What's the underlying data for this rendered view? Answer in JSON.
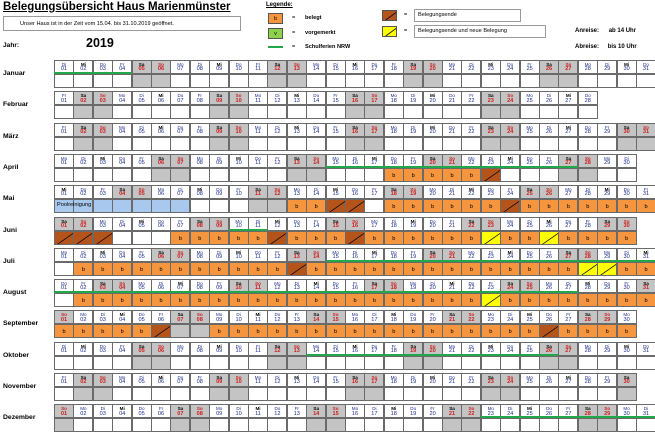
{
  "header": {
    "title": "Belegungsübersicht Haus Marienmünster",
    "notice": "Unser Haus ist in der Zeit vom 15.04. bis 31.10.2019 geöffnet.",
    "jahr_label": "Jahr:",
    "jahr": "2019"
  },
  "legend": {
    "title": "Legende:",
    "eq": "=",
    "items": [
      {
        "key": "b",
        "label": "belegt",
        "color": "#f5953d"
      },
      {
        "key": "v",
        "label": "vorgemerkt",
        "color": "#8ed14a"
      },
      {
        "key": "",
        "label": "Schulferien NRW",
        "color": "#22a84a"
      },
      {
        "key": "",
        "label": "Belegungsende",
        "color": "#b4541b"
      },
      {
        "key": "",
        "label": "Belegungsende und neue Belegung",
        "color": "#ffff00"
      }
    ]
  },
  "times": {
    "anreise_label": "Anreise:",
    "anreise": "ab 14 Uhr",
    "abreise_label": "Abreise:",
    "abreise": "bis 10 Uhr"
  },
  "calendar": {
    "weekday_abbr": [
      "Mo",
      "Di",
      "Mi",
      "Do",
      "Fr",
      "Sa",
      "So"
    ],
    "months": [
      {
        "name": "Januar",
        "start_dow": 1,
        "days": 31
      },
      {
        "name": "Februar",
        "start_dow": 4,
        "days": 28
      },
      {
        "name": "März",
        "start_dow": 4,
        "days": 31
      },
      {
        "name": "April",
        "start_dow": 0,
        "days": 30
      },
      {
        "name": "Mai",
        "start_dow": 2,
        "days": 31
      },
      {
        "name": "Juni",
        "start_dow": 5,
        "days": 30
      },
      {
        "name": "Juli",
        "start_dow": 0,
        "days": 31
      },
      {
        "name": "August",
        "start_dow": 3,
        "days": 31
      },
      {
        "name": "September",
        "start_dow": 6,
        "days": 30
      },
      {
        "name": "Oktober",
        "start_dow": 1,
        "days": 31
      },
      {
        "name": "November",
        "start_dow": 4,
        "days": 30
      },
      {
        "name": "Dezember",
        "start_dow": 6,
        "days": 31
      }
    ],
    "note_freiraum": "Poolreinigung",
    "bookings": {
      "April": {
        "b": [
          18,
          19,
          20,
          21,
          22
        ],
        "be": [
          23
        ]
      },
      "Mai": {
        "fr": [
          1,
          2,
          3,
          4,
          5,
          6,
          7
        ],
        "b": [
          13,
          14,
          18,
          19,
          20,
          21,
          22,
          23,
          25,
          26,
          27,
          28,
          29,
          30,
          31
        ],
        "be": [
          15,
          16,
          24
        ]
      },
      "Juni": {
        "b": [
          7,
          8,
          9,
          10,
          11,
          13,
          14,
          15,
          17,
          18,
          19,
          20,
          21,
          22,
          24,
          25,
          27,
          28,
          29,
          30
        ],
        "be": [
          1,
          2,
          3,
          12,
          16
        ],
        "bny": [
          23,
          26
        ]
      },
      "Juli": {
        "b": [
          2,
          3,
          4,
          5,
          6,
          7,
          8,
          9,
          10,
          11,
          12,
          14,
          15,
          16,
          17,
          18,
          19,
          20,
          21,
          22,
          23,
          24,
          25,
          26,
          27,
          30,
          31
        ],
        "be": [
          13
        ],
        "bny": [
          28,
          29
        ]
      },
      "August": {
        "b": [
          2,
          3,
          4,
          5,
          6,
          7,
          8,
          9,
          10,
          11,
          12,
          13,
          14,
          15,
          16,
          17,
          18,
          19,
          20,
          21,
          22,
          24,
          25,
          26,
          27,
          28,
          29,
          30,
          31
        ],
        "bny": [
          23
        ]
      },
      "September": {
        "b": [
          1,
          2,
          3,
          4,
          5,
          9,
          10,
          11,
          12,
          13,
          14,
          15,
          16,
          17,
          18,
          19,
          20,
          21,
          22,
          23,
          24,
          25,
          27,
          28,
          29,
          30
        ],
        "be": [
          6,
          26
        ]
      },
      "Oktober": {
        "b": []
      }
    },
    "ferien": {
      "Januar": [
        1,
        4
      ],
      "April": [
        15,
        27
      ],
      "Juni": [
        10,
        11
      ],
      "Juli": [
        15,
        31
      ],
      "August": [
        1,
        27
      ],
      "Oktober": [
        14,
        26
      ],
      "Dezember": [
        23,
        31
      ]
    }
  }
}
